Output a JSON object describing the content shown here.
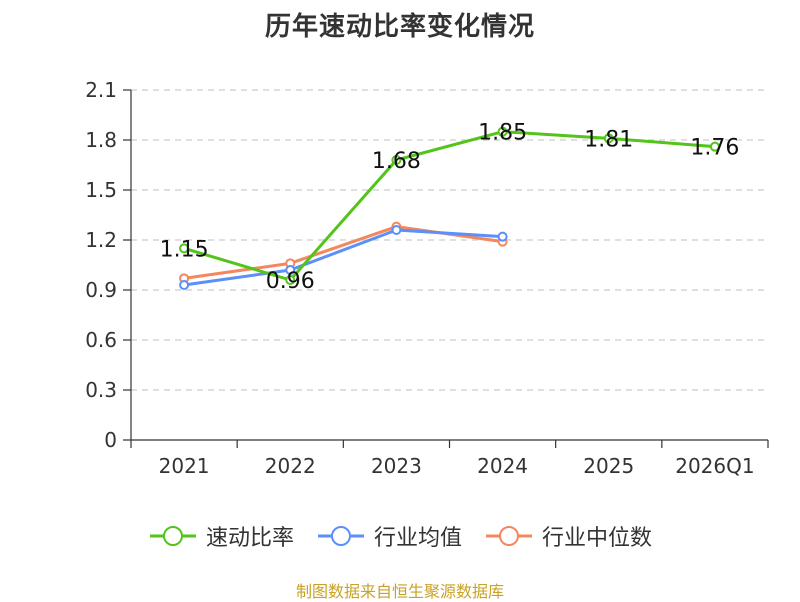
{
  "chart_data": {
    "type": "line",
    "title": "历年速动比率变化情况",
    "categories": [
      "2021",
      "2022",
      "2023",
      "2024",
      "2025",
      "2026Q1"
    ],
    "ylim": [
      0,
      2.1
    ],
    "yticks": [
      "0",
      "0.3",
      "0.6",
      "0.9",
      "1.2",
      "1.5",
      "1.8",
      "2.1"
    ],
    "grid": true,
    "legend_position": "bottom",
    "series": [
      {
        "name": "速动比率",
        "color": "#52c41a",
        "values": [
          1.15,
          0.96,
          1.68,
          1.85,
          1.81,
          1.76
        ],
        "labels": [
          "1.15",
          "0.96",
          "1.68",
          "1.85",
          "1.81",
          "1.76"
        ]
      },
      {
        "name": "行业均值",
        "color": "#5b8ff9",
        "values": [
          0.93,
          1.02,
          1.26,
          1.22,
          null,
          null
        ]
      },
      {
        "name": "行业中位数",
        "color": "#f4875d",
        "values": [
          0.97,
          1.06,
          1.28,
          1.19,
          null,
          null
        ]
      }
    ]
  },
  "footer": {
    "source": "制图数据来自恒生聚源数据库"
  }
}
